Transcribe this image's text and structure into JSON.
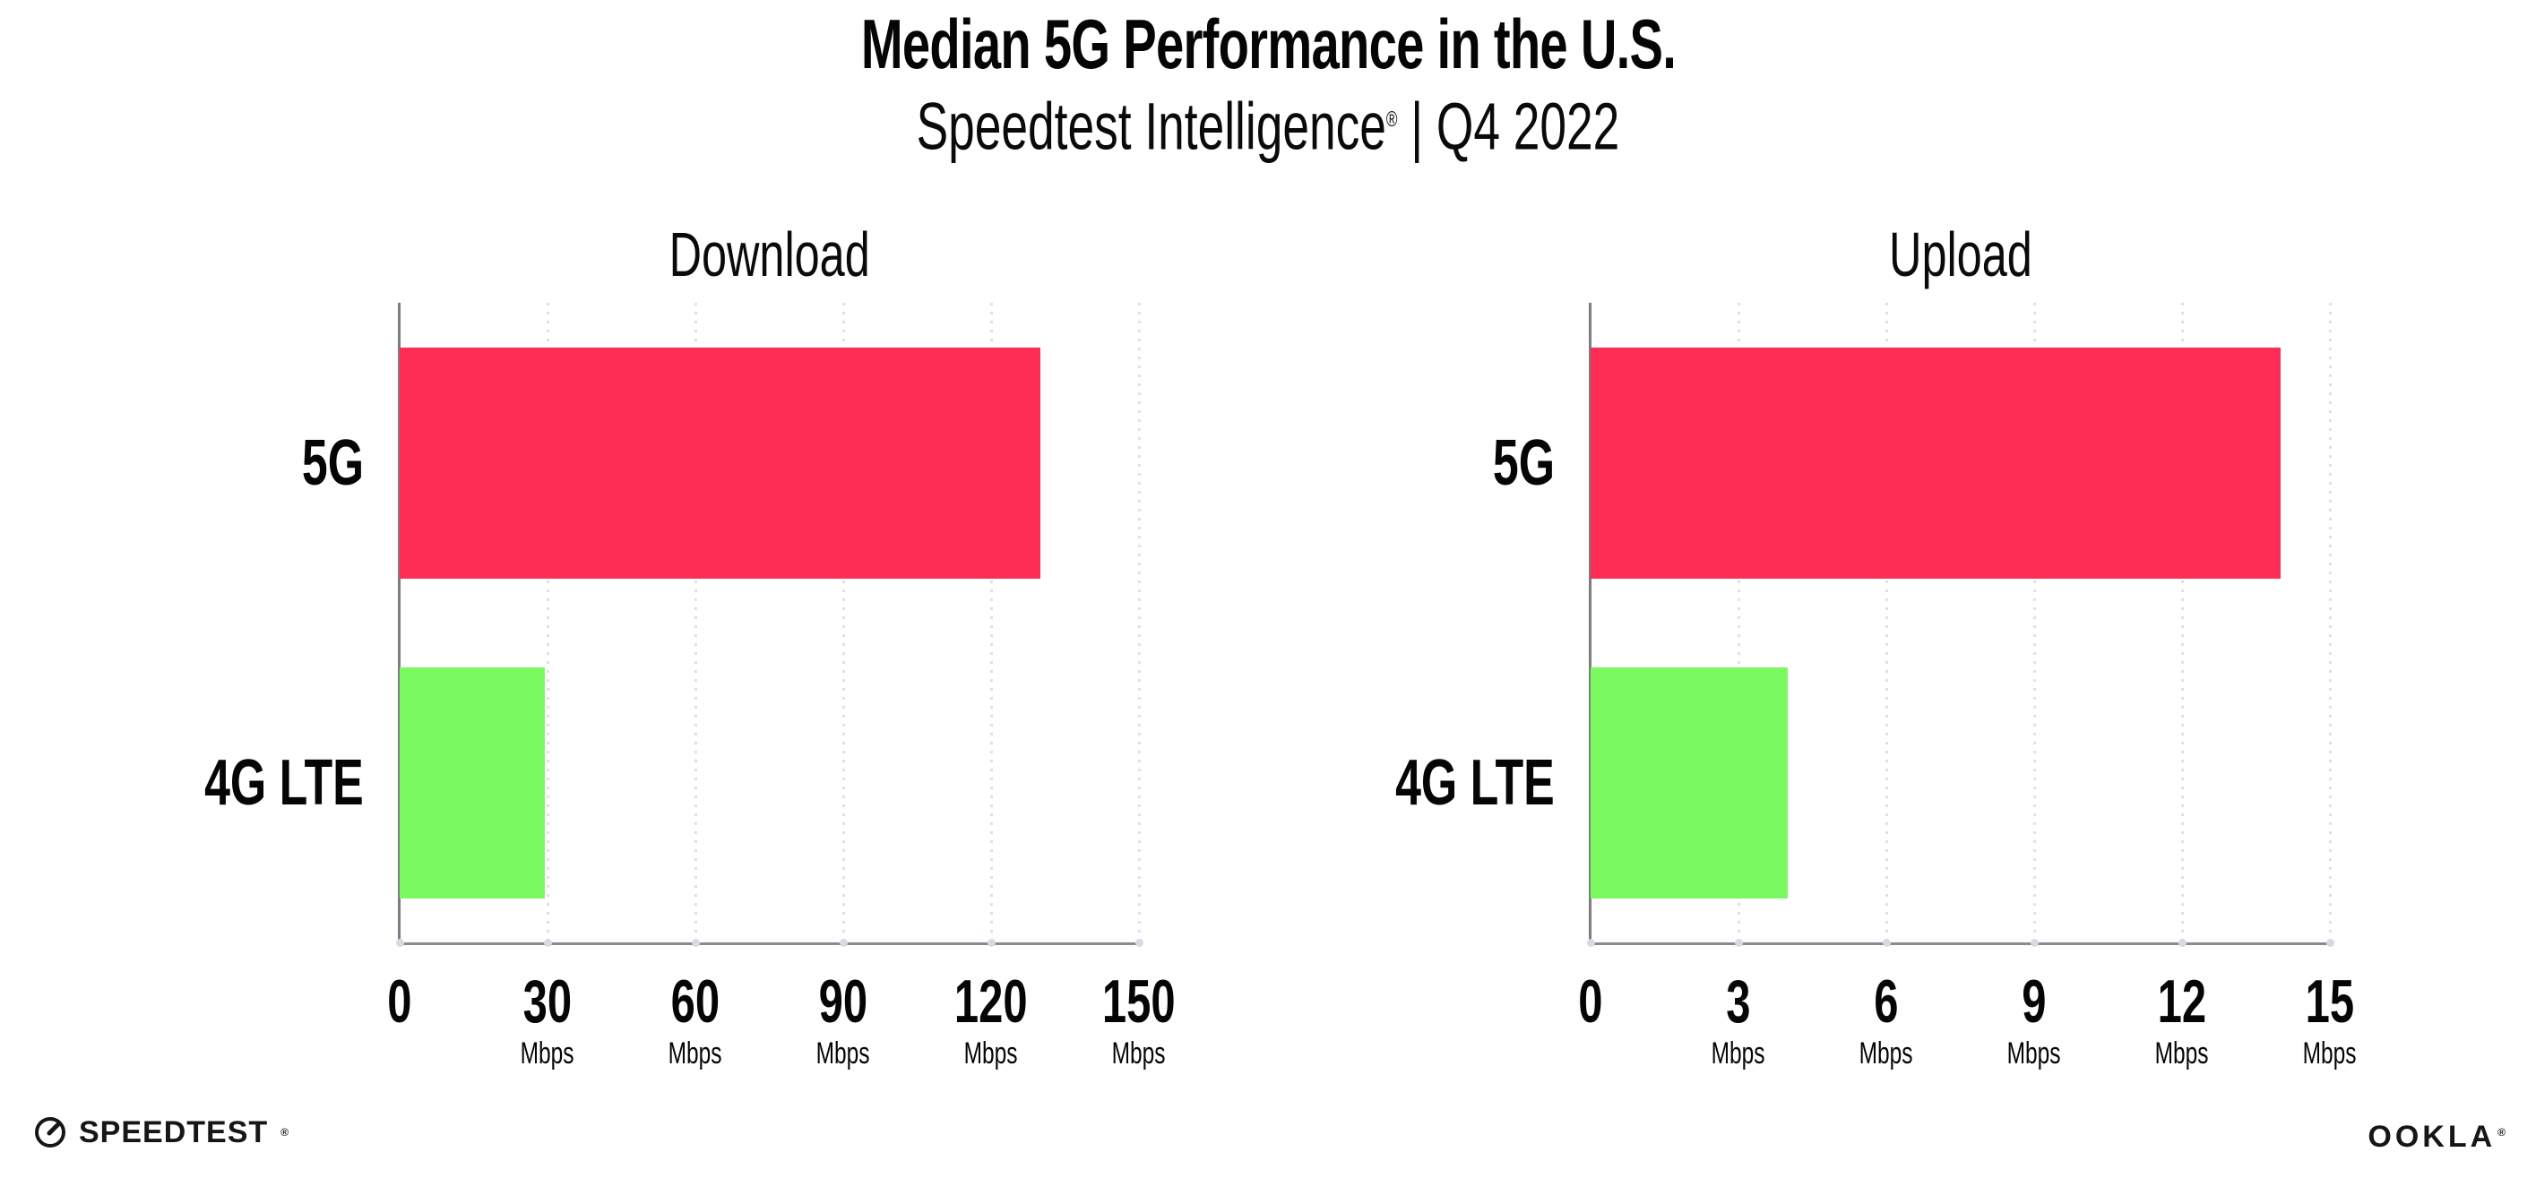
{
  "header": {
    "title": "Median 5G Performance in the U.S.",
    "subtitle_brand": "Speedtest Intelligence",
    "subtitle_mark": "®",
    "subtitle_rest": " | Q4 2022"
  },
  "colors": {
    "bar_5g": "#FD2D55",
    "bar_4g_lte": "#7BFA5F",
    "gridline": "#DFDFE9",
    "axis": "#8A8A90",
    "text": "#050505"
  },
  "chart_data": [
    {
      "type": "bar",
      "orientation": "horizontal",
      "title": "Download",
      "categories": [
        "5G",
        "4G LTE"
      ],
      "values": [
        130,
        29.5
      ],
      "bar_colors": [
        "#FD2D55",
        "#7BFA5F"
      ],
      "xlim": [
        0,
        150
      ],
      "xticks": [
        0,
        30,
        60,
        90,
        120,
        150
      ],
      "tick_unit_label": "Mbps",
      "grid": "vertical-dotted",
      "legend": "none"
    },
    {
      "type": "bar",
      "orientation": "horizontal",
      "title": "Upload",
      "categories": [
        "5G",
        "4G LTE"
      ],
      "values": [
        14,
        4
      ],
      "bar_colors": [
        "#FD2D55",
        "#7BFA5F"
      ],
      "xlim": [
        0,
        15
      ],
      "xticks": [
        0,
        3,
        6,
        9,
        12,
        15
      ],
      "tick_unit_label": "Mbps",
      "grid": "vertical-dotted",
      "legend": "none"
    }
  ],
  "footer": {
    "speedtest_logo_text": "SPEEDTEST",
    "speedtest_mark": "®",
    "ookla_logo_text": "OOKLA",
    "ookla_mark": "®"
  }
}
